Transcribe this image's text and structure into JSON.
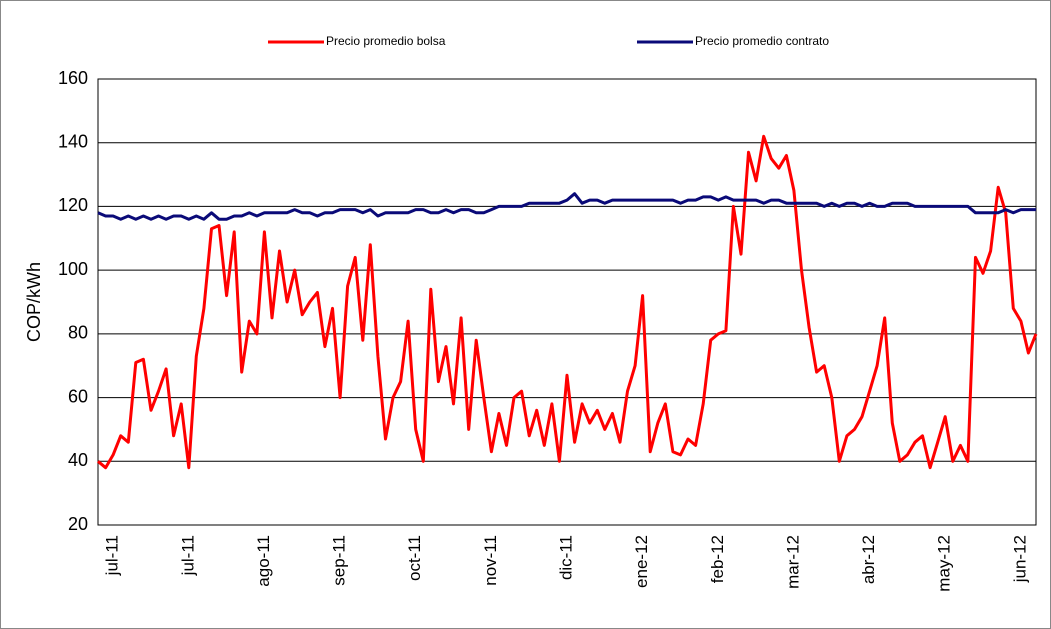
{
  "chart_data": {
    "type": "line",
    "y_label": "COP/kWh",
    "categories": [
      null,
      null,
      "jul-11",
      null,
      null,
      null,
      null,
      null,
      null,
      null,
      null,
      null,
      "jul-11",
      null,
      null,
      null,
      null,
      null,
      null,
      null,
      null,
      null,
      "ago-11",
      null,
      null,
      null,
      null,
      null,
      null,
      null,
      null,
      null,
      "sep-11",
      null,
      null,
      null,
      null,
      null,
      null,
      null,
      null,
      null,
      "oct-11",
      null,
      null,
      null,
      null,
      null,
      null,
      null,
      null,
      null,
      "nov-11",
      null,
      null,
      null,
      null,
      null,
      null,
      null,
      null,
      null,
      "dic-11",
      null,
      null,
      null,
      null,
      null,
      null,
      null,
      null,
      null,
      "ene-12",
      null,
      null,
      null,
      null,
      null,
      null,
      null,
      null,
      null,
      "feb-12",
      null,
      null,
      null,
      null,
      null,
      null,
      null,
      null,
      null,
      "mar-12",
      null,
      null,
      null,
      null,
      null,
      null,
      null,
      null,
      null,
      "abr-12",
      null,
      null,
      null,
      null,
      null,
      null,
      null,
      null,
      null,
      "may-12",
      null,
      null,
      null,
      null,
      null,
      null,
      null,
      null,
      null,
      "jun-12",
      null,
      null
    ],
    "series": [
      {
        "name": "Precio promedio bolsa",
        "color": "#ff0000",
        "values": [
          40,
          38,
          42,
          48,
          46,
          71,
          72,
          56,
          62,
          69,
          48,
          58,
          38,
          73,
          88,
          113,
          114,
          92,
          112,
          68,
          84,
          80,
          112,
          85,
          106,
          90,
          100,
          86,
          90,
          93,
          76,
          88,
          60,
          95,
          104,
          78,
          108,
          73,
          47,
          60,
          65,
          84,
          50,
          40,
          94,
          65,
          76,
          58,
          85,
          50,
          78,
          60,
          43,
          55,
          45,
          60,
          62,
          48,
          56,
          45,
          58,
          40,
          67,
          46,
          58,
          52,
          56,
          50,
          55,
          46,
          62,
          70,
          92,
          43,
          52,
          58,
          43,
          42,
          47,
          45,
          58,
          78,
          80,
          81,
          120,
          105,
          137,
          128,
          142,
          135,
          132,
          136,
          125,
          100,
          82,
          68,
          70,
          60,
          40,
          48,
          50,
          54,
          62,
          70,
          85,
          52,
          40,
          42,
          46,
          48,
          38,
          46,
          54,
          40,
          45,
          40,
          104,
          99,
          106,
          126,
          118,
          88,
          84,
          74,
          80
        ]
      },
      {
        "name": "Precio promedio contrato",
        "color": "#0a0a78",
        "values": [
          118,
          117,
          117,
          116,
          117,
          116,
          117,
          116,
          117,
          116,
          117,
          117,
          116,
          117,
          116,
          118,
          116,
          116,
          117,
          117,
          118,
          117,
          118,
          118,
          118,
          118,
          119,
          118,
          118,
          117,
          118,
          118,
          119,
          119,
          119,
          118,
          119,
          117,
          118,
          118,
          118,
          118,
          119,
          119,
          118,
          118,
          119,
          118,
          119,
          119,
          118,
          118,
          119,
          120,
          120,
          120,
          120,
          121,
          121,
          121,
          121,
          121,
          122,
          124,
          121,
          122,
          122,
          121,
          122,
          122,
          122,
          122,
          122,
          122,
          122,
          122,
          122,
          121,
          122,
          122,
          123,
          123,
          122,
          123,
          122,
          122,
          122,
          122,
          121,
          122,
          122,
          121,
          121,
          121,
          121,
          121,
          120,
          121,
          120,
          121,
          121,
          120,
          121,
          120,
          120,
          121,
          121,
          121,
          120,
          120,
          120,
          120,
          120,
          120,
          120,
          120,
          118,
          118,
          118,
          118,
          119,
          118,
          119,
          119,
          119
        ]
      }
    ],
    "ylim": [
      20,
      160
    ],
    "yticks": [
      20,
      40,
      60,
      80,
      100,
      120,
      140,
      160
    ],
    "grid": true,
    "legend": "top"
  }
}
